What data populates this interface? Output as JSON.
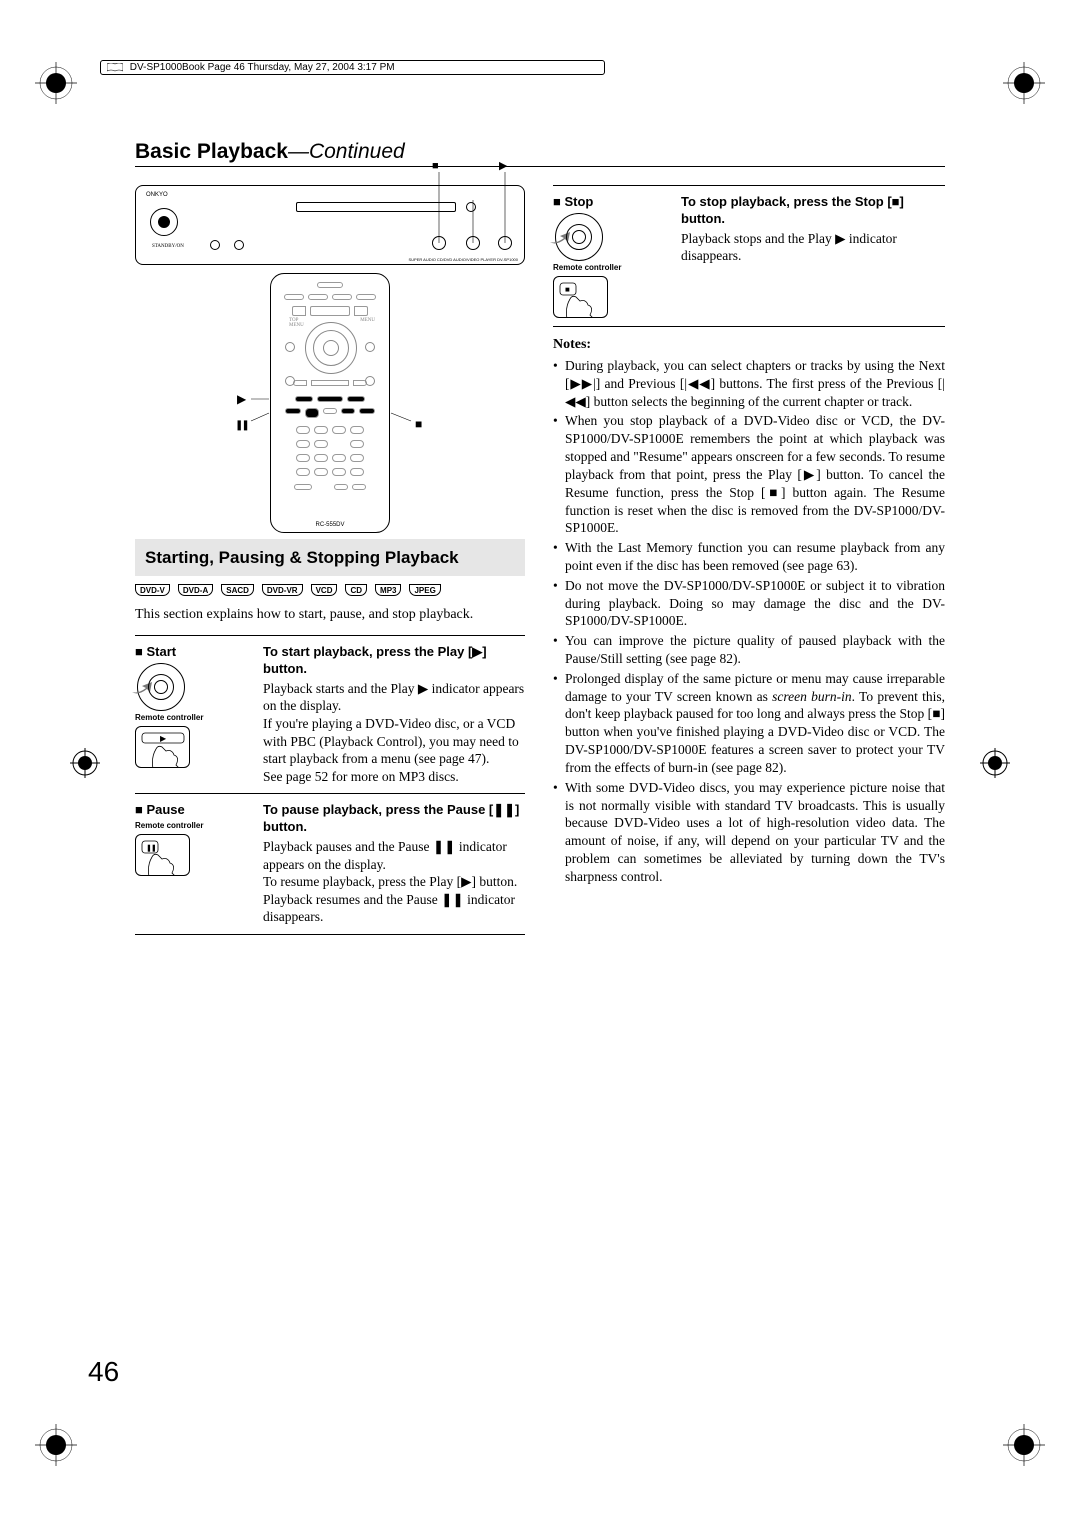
{
  "header_bar": "DV-SP1000Book Page 46 Thursday, May 27, 2004 3:17 PM",
  "title_main": "Basic Playback",
  "title_cont": "—Continued",
  "remote_label": "RC-555DV",
  "section_title": "Starting, Pausing & Stopping Playback",
  "disc_badges": [
    "DVD-V",
    "DVD-A",
    "SACD",
    "DVD-VR",
    "VCD",
    "CD",
    "MP3",
    "JPEG"
  ],
  "intro": "This section explains how to start, pause, and stop playback.",
  "remote_controller_label": "Remote controller",
  "steps": {
    "start": {
      "name": "Start",
      "head": "To start playback, press the Play [▶] button.",
      "body": "Playback starts and the Play ▶ indicator appears on the display.\nIf you're playing a DVD-Video disc, or a VCD with PBC (Playback Control), you may need to start playback from a menu (see page 47).\nSee page 52 for more on MP3 discs."
    },
    "pause": {
      "name": "Pause",
      "head": "To pause playback, press the Pause [❚❚] button.",
      "body": "Playback pauses and the Pause ❚❚ indicator appears on the display.\nTo resume playback, press the Play [▶] button.\nPlayback resumes and the Pause ❚❚ indicator disappears."
    },
    "stop": {
      "name": "Stop",
      "head": "To stop playback, press the Stop [■] button.",
      "body": "Playback stops and the Play ▶ indicator disappears."
    }
  },
  "notes_heading": "Notes:",
  "notes": [
    "During playback, you can select chapters or tracks by using the Next [▶▶|] and Previous [|◀◀] buttons. The first press of the Previous [|◀◀] button selects the beginning of the current chapter or track.",
    "When you stop playback of a DVD-Video disc or VCD, the DV-SP1000/DV-SP1000E remembers the point at which playback was stopped and \"Resume\" appears onscreen for a few seconds. To resume playback from that point, press the Play [▶] button. To cancel the Resume function, press the Stop [■] button again. The Resume function is reset when the disc is removed from the DV-SP1000/DV-SP1000E.",
    "With the Last Memory function you can resume playback from any point even if the disc has been removed (see page 63).",
    "Do not move the DV-SP1000/DV-SP1000E or subject it to vibration during playback. Doing so may damage the disc and the DV-SP1000/DV-SP1000E.",
    "You can improve the picture quality of paused playback with the Pause/Still setting (see page 82).",
    "Prolonged display of the same picture or menu may cause irreparable damage to your TV screen known as <i>screen burn-in</i>. To prevent this, don't keep playback paused for too long and always press the Stop [■] button when you've finished playing a DVD-Video disc or VCD. The DV-SP1000/DV-SP1000E features a screen saver to protect your TV from the effects of burn-in (see page 82).",
    "With some DVD-Video discs, you may experience picture noise that is not normally visible with standard TV broadcasts. This is usually because DVD-Video uses a lot of high-resolution video data. The amount of noise, if any, will depend on your particular TV and the problem can sometimes be alleviated by turning down the TV's sharpness control."
  ],
  "page_number": "46",
  "colors": {
    "section_bg": "#e6e6e6",
    "text": "#000000",
    "page_bg": "#ffffff"
  }
}
